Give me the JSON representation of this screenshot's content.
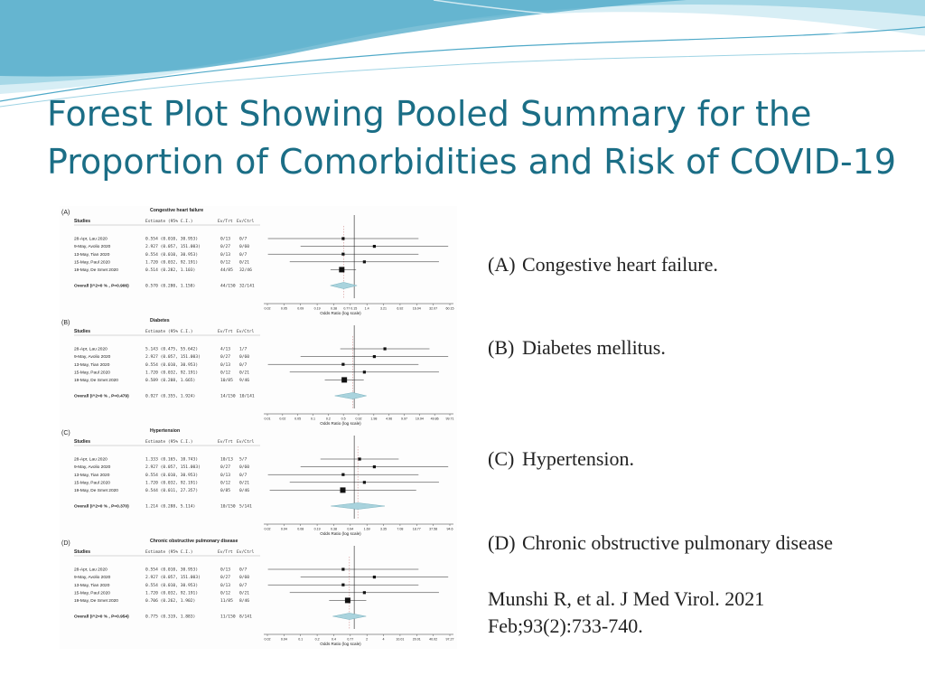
{
  "slide": {
    "title_line1": "Forest Plot Showing Pooled Summary for the",
    "title_line2": "Proportion of Comorbidities and Risk of COVID-19",
    "colors": {
      "title": "#1b6e86",
      "wave_light": "#d7eef5",
      "wave_mid": "#9ed3e4",
      "wave_dark": "#4fa9c8"
    }
  },
  "captions": [
    {
      "tag": "(A)",
      "text": "Congestive heart failure."
    },
    {
      "tag": "(B)",
      "text": "Diabetes mellitus."
    },
    {
      "tag": "(C)",
      "text": "Hypertension."
    },
    {
      "tag": "(D)",
      "text": "Chronic obstructive pulmonary disease"
    }
  ],
  "citation": {
    "line1": "Munshi R, et al. J Med Virol. 2021",
    "line2": "Feb;93(2):733-740."
  },
  "chart_data": [
    {
      "type": "forest",
      "panel": "(A)",
      "title": "Congestive heart failure",
      "columns": [
        "Studies",
        "Estimate (95% C.I.)",
        "Ev/Trt",
        "Ev/Ctrl"
      ],
      "studies": [
        {
          "study": "28-Apr, Lau 2020",
          "estimate": 0.554,
          "lower": 0.01,
          "upper": 30.953,
          "ev_trt": "0/13",
          "ev_ctrl": "0/7"
        },
        {
          "study": "9-May, Avolio 2020",
          "estimate": 2.927,
          "lower": 0.057,
          "upper": 151.003,
          "ev_trt": "0/27",
          "ev_ctrl": "0/60"
        },
        {
          "study": "13-May, Tian 2020",
          "estimate": 0.554,
          "lower": 0.01,
          "upper": 30.953,
          "ev_trt": "0/13",
          "ev_ctrl": "0/7"
        },
        {
          "study": "15-May, Paul 2020",
          "estimate": 1.72,
          "lower": 0.032,
          "upper": 92.191,
          "ev_trt": "0/12",
          "ev_ctrl": "0/21"
        },
        {
          "study": "19-May, De Smet 2020",
          "estimate": 0.514,
          "lower": 0.282,
          "upper": 1.103,
          "ev_trt": "44/85",
          "ev_ctrl": "32/46"
        }
      ],
      "overall": {
        "label": "Overall (I^2=0 % , P=0.906)",
        "estimate": 0.57,
        "lower": 0.28,
        "upper": 1.158,
        "ev_trt": "44/150",
        "ev_ctrl": "32/141"
      },
      "xlabel": "Odds Ratio (log scale)",
      "xticks": [
        "0.02",
        "0.05",
        "0.09",
        "0.19",
        "0.38",
        "0.77 0.15",
        "1.4",
        "3.21",
        "6.92",
        "16.04",
        "32.07",
        "60.15"
      ]
    },
    {
      "type": "forest",
      "panel": "(B)",
      "title": "Diabetes",
      "columns": [
        "Studies",
        "Estimate (95% C.I.)",
        "Ev/Trt",
        "Ev/Ctrl"
      ],
      "studies": [
        {
          "study": "28-Apr, Lau 2020",
          "estimate": 5.143,
          "lower": 0.475,
          "upper": 55.642,
          "ev_trt": "4/13",
          "ev_ctrl": "1/7"
        },
        {
          "study": "9-May, Avolio 2020",
          "estimate": 2.927,
          "lower": 0.057,
          "upper": 151.003,
          "ev_trt": "0/27",
          "ev_ctrl": "0/60"
        },
        {
          "study": "13-May, Tian 2020",
          "estimate": 0.554,
          "lower": 0.01,
          "upper": 30.953,
          "ev_trt": "0/13",
          "ev_ctrl": "0/7"
        },
        {
          "study": "15-May, Paul 2020",
          "estimate": 1.72,
          "lower": 0.032,
          "upper": 92.191,
          "ev_trt": "0/12",
          "ev_ctrl": "0/21"
        },
        {
          "study": "19-May, De Smet 2020",
          "estimate": 0.589,
          "lower": 0.208,
          "upper": 1.665,
          "ev_trt": "10/85",
          "ev_ctrl": "9/46"
        }
      ],
      "overall": {
        "label": "Overall (I^2=0 % , P=0.479)",
        "estimate": 0.927,
        "lower": 0.355,
        "upper": 1.924,
        "ev_trt": "14/150",
        "ev_ctrl": "10/141"
      },
      "xlabel": "Odds Ratio (log scale)",
      "xticks": [
        "0.01",
        "0.02",
        "0.05",
        "0.1",
        "0.2",
        "0.5",
        "0.92",
        "1.98",
        "4.96",
        "9.97",
        "19.94",
        "49.86",
        "99.71"
      ]
    },
    {
      "type": "forest",
      "panel": "(C)",
      "title": "Hypertension",
      "columns": [
        "Studies",
        "Estimate (95% C.I.)",
        "Ev/Trt",
        "Ev/Ctrl"
      ],
      "studies": [
        {
          "study": "28-Apr, Lau 2020",
          "estimate": 1.333,
          "lower": 0.165,
          "upper": 10.743,
          "ev_trt": "10/13",
          "ev_ctrl": "5/7"
        },
        {
          "study": "9-May, Avolio 2020",
          "estimate": 2.927,
          "lower": 0.057,
          "upper": 151.003,
          "ev_trt": "0/27",
          "ev_ctrl": "0/60"
        },
        {
          "study": "13-May, Tian 2020",
          "estimate": 0.554,
          "lower": 0.01,
          "upper": 30.953,
          "ev_trt": "0/13",
          "ev_ctrl": "0/7"
        },
        {
          "study": "15-May, Paul 2020",
          "estimate": 1.72,
          "lower": 0.032,
          "upper": 92.191,
          "ev_trt": "0/12",
          "ev_ctrl": "0/21"
        },
        {
          "study": "19-May, De Smet 2020",
          "estimate": 0.544,
          "lower": 0.011,
          "upper": 27.357,
          "ev_trt": "0/85",
          "ev_ctrl": "0/46"
        }
      ],
      "overall": {
        "label": "Overall (I^2=0 % , P=0.370)",
        "estimate": 1.214,
        "lower": 0.288,
        "upper": 5.114,
        "ev_trt": "10/150",
        "ev_ctrl": "5/141"
      },
      "xlabel": "Odds Ratio (log scale)",
      "xticks": [
        "0.02",
        "0.04",
        "0.08",
        "0.19",
        "0.38",
        "0.94",
        "1.69",
        "3.35",
        "7.08",
        "18.77",
        "37.58",
        "94.6"
      ]
    },
    {
      "type": "forest",
      "panel": "(D)",
      "title": "Chronic obstructive pulmonary disease",
      "columns": [
        "Studies",
        "Estimate (95% C.I.)",
        "Ev/Trt",
        "Ev/Ctrl"
      ],
      "studies": [
        {
          "study": "28-Apr, Lau 2020",
          "estimate": 0.554,
          "lower": 0.01,
          "upper": 30.953,
          "ev_trt": "0/13",
          "ev_ctrl": "0/7"
        },
        {
          "study": "9-May, Avolio 2020",
          "estimate": 2.927,
          "lower": 0.057,
          "upper": 151.003,
          "ev_trt": "0/27",
          "ev_ctrl": "0/60"
        },
        {
          "study": "13-May, Tian 2020",
          "estimate": 0.554,
          "lower": 0.01,
          "upper": 30.953,
          "ev_trt": "0/13",
          "ev_ctrl": "0/7"
        },
        {
          "study": "15-May, Paul 2020",
          "estimate": 1.72,
          "lower": 0.032,
          "upper": 92.191,
          "ev_trt": "0/12",
          "ev_ctrl": "0/21"
        },
        {
          "study": "19-May, De Smet 2020",
          "estimate": 0.706,
          "lower": 0.262,
          "upper": 1.902,
          "ev_trt": "11/85",
          "ev_ctrl": "8/46"
        }
      ],
      "overall": {
        "label": "Overall (I^2=0 % , P=0.954)",
        "estimate": 0.775,
        "lower": 0.319,
        "upper": 1.883,
        "ev_trt": "11/150",
        "ev_ctrl": "8/141"
      },
      "xlabel": "Odds Ratio (log scale)",
      "xticks": [
        "0.02",
        "0.04",
        "0.1",
        "0.2",
        "0.4",
        "0.77",
        "2",
        "4",
        "10.01",
        "20.01",
        "40.02",
        "97.27"
      ]
    }
  ]
}
